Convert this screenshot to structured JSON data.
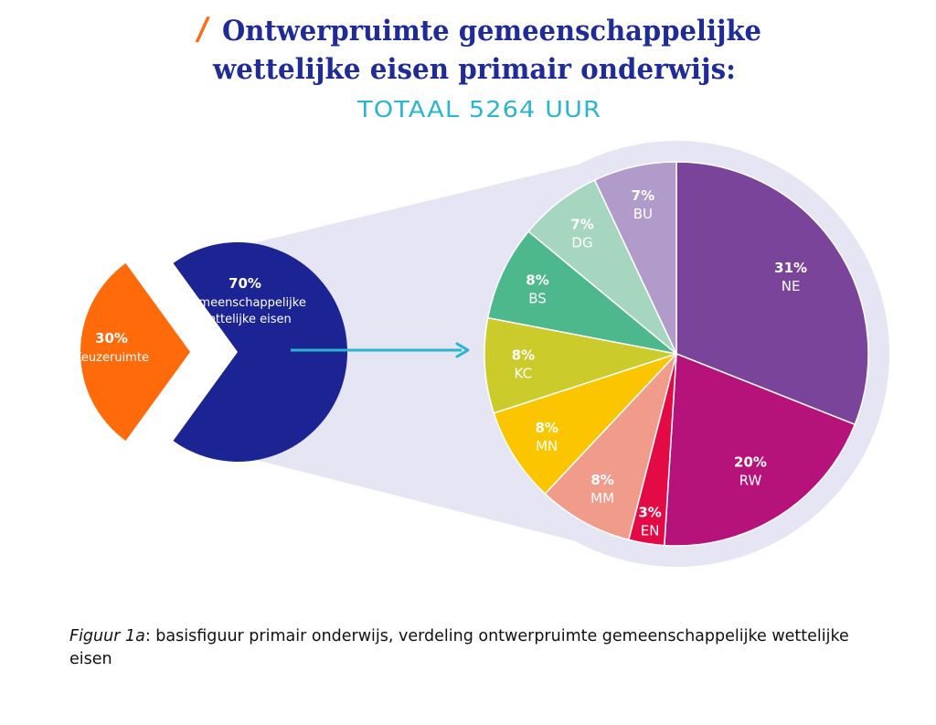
{
  "title": {
    "line1": "Ontwerpruimte gemeenschappelijke",
    "line2": "wettelijke eisen primair onderwijs:",
    "accent_mark": "/"
  },
  "subtitle": "TOTAAL 5264 UUR",
  "colors": {
    "title": "#1f2b96",
    "accent": "#ff6a13",
    "subtitle": "#2bb6cf",
    "halo": "#e6e5f4",
    "arrow": "#2bb6cf"
  },
  "chart_data": [
    {
      "type": "pie",
      "title": "Ontwerpruimte",
      "slices": [
        {
          "key": "keuze",
          "pct_label": "30%",
          "label": "Keuzeruimte",
          "value": 30,
          "color": "#ff6b0a"
        },
        {
          "key": "gem",
          "pct_label": "70%",
          "label_lines": [
            "gemeenschappelijke",
            "wettelijke eisen"
          ],
          "value": 70,
          "color": "#1c2392"
        }
      ]
    },
    {
      "type": "pie",
      "title": "Gemeenschappelijke wettelijke eisen",
      "slices": [
        {
          "key": "NE",
          "pct_label": "31%",
          "label": "NE",
          "value": 31,
          "color": "#7a449a"
        },
        {
          "key": "RW",
          "pct_label": "20%",
          "label": "RW",
          "value": 20,
          "color": "#b6137a"
        },
        {
          "key": "EN",
          "pct_label": "3%",
          "label": "EN",
          "value": 3,
          "color": "#e40a46"
        },
        {
          "key": "MM",
          "pct_label": "8%",
          "label": "MM",
          "value": 8,
          "color": "#f19b8a"
        },
        {
          "key": "MN",
          "pct_label": "8%",
          "label": "MN",
          "value": 8,
          "color": "#fbc500"
        },
        {
          "key": "KC",
          "pct_label": "8%",
          "label": "KC",
          "value": 8,
          "color": "#cccb2c"
        },
        {
          "key": "BS",
          "pct_label": "8%",
          "label": "BS",
          "value": 8,
          "color": "#4eb88d"
        },
        {
          "key": "DG",
          "pct_label": "7%",
          "label": "DG",
          "value": 7,
          "color": "#a6d6bf"
        },
        {
          "key": "BU",
          "pct_label": "7%",
          "label": "BU",
          "value": 7,
          "color": "#b19bcb"
        }
      ]
    }
  ],
  "caption": {
    "figure_label": "Figuur 1a",
    "text": ": basisfiguur primair onderwijs, verdeling ontwerpruimte gemeenschappelijke wettelijke eisen"
  }
}
